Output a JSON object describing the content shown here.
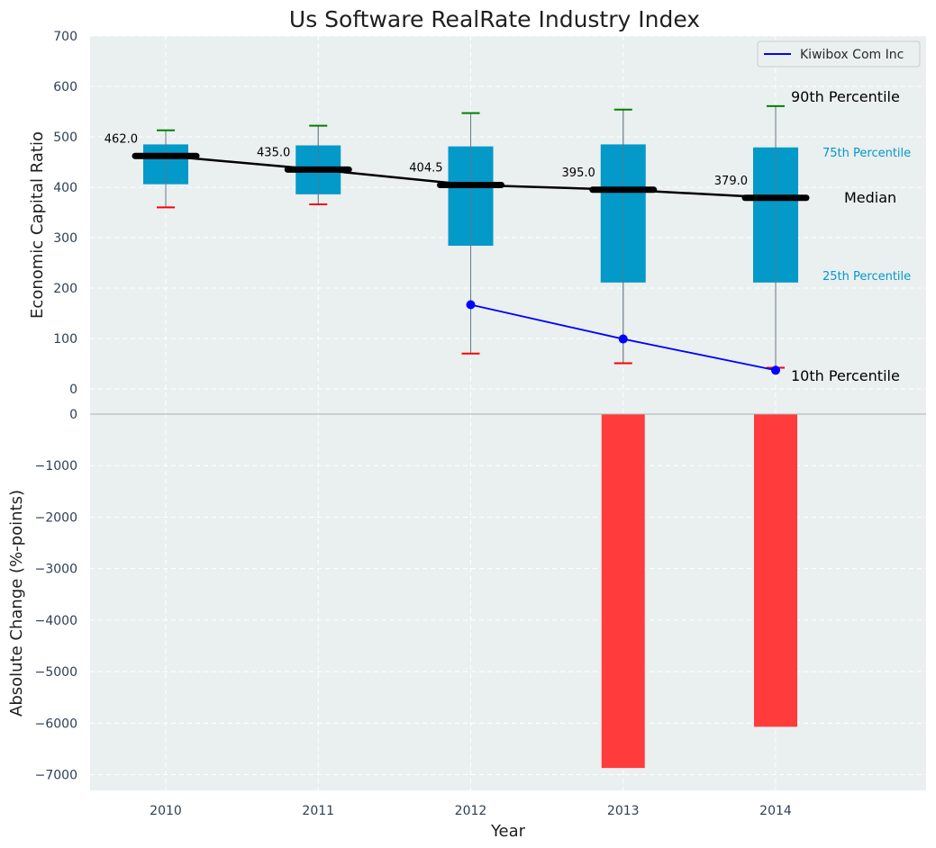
{
  "chart_data": [
    {
      "type": "box",
      "title": "Us Software RealRate Industry Index",
      "ylabel": "Economic Capital Ratio",
      "ylim": [
        0,
        700
      ],
      "yticks": [
        0,
        100,
        200,
        300,
        400,
        500,
        600,
        700
      ],
      "grid": true,
      "categories": [
        "2010",
        "2011",
        "2012",
        "2013",
        "2014"
      ],
      "boxes": [
        {
          "year": "2010",
          "p10": 360,
          "p25": 406,
          "median": 462.0,
          "p75": 485,
          "p90": 513,
          "median_label": "462.0"
        },
        {
          "year": "2011",
          "p10": 366,
          "p25": 386,
          "median": 435.0,
          "p75": 483,
          "p90": 522,
          "median_label": "435.0"
        },
        {
          "year": "2012",
          "p10": 70,
          "p25": 284,
          "median": 404.5,
          "p75": 481,
          "p90": 547,
          "median_label": "404.5"
        },
        {
          "year": "2013",
          "p10": 51,
          "p25": 211,
          "median": 395.0,
          "p75": 485,
          "p90": 554,
          "median_label": "395.0"
        },
        {
          "year": "2014",
          "p10": 42,
          "p25": 211,
          "median": 379.0,
          "p75": 479,
          "p90": 561,
          "median_label": "379.0"
        }
      ],
      "series": [
        {
          "name": "Kiwibox Com Inc",
          "color": "#0000ff",
          "x": [
            "2012",
            "2013",
            "2014"
          ],
          "values": [
            167,
            99,
            37
          ]
        }
      ],
      "legend": {
        "position": "top-right",
        "entries": [
          "Kiwibox Com Inc"
        ]
      },
      "annotations": {
        "p90": "90th Percentile",
        "p75": "75th Percentile",
        "median": "Median",
        "p25": "25th Percentile",
        "p10": "10th Percentile"
      },
      "colors": {
        "box": "#0399c9",
        "median": "#000000",
        "whisker_high": "#008000",
        "whisker_low": "#ff0000",
        "background": "#eaeff0"
      }
    },
    {
      "type": "bar",
      "ylabel": "Absolute Change (%-points)",
      "xlabel": "Year",
      "ylim": [
        -7200,
        0
      ],
      "yticks": [
        0,
        -1000,
        -2000,
        -3000,
        -4000,
        -5000,
        -6000,
        -7000
      ],
      "ytick_labels": [
        "0",
        "−1000",
        "−2000",
        "−3000",
        "−4000",
        "−5000",
        "−6000",
        "−7000"
      ],
      "grid": true,
      "categories": [
        "2010",
        "2011",
        "2012",
        "2013",
        "2014"
      ],
      "values": [
        null,
        null,
        null,
        -6870,
        -6070
      ],
      "colors": {
        "bar": "#ff3b3b"
      }
    }
  ]
}
